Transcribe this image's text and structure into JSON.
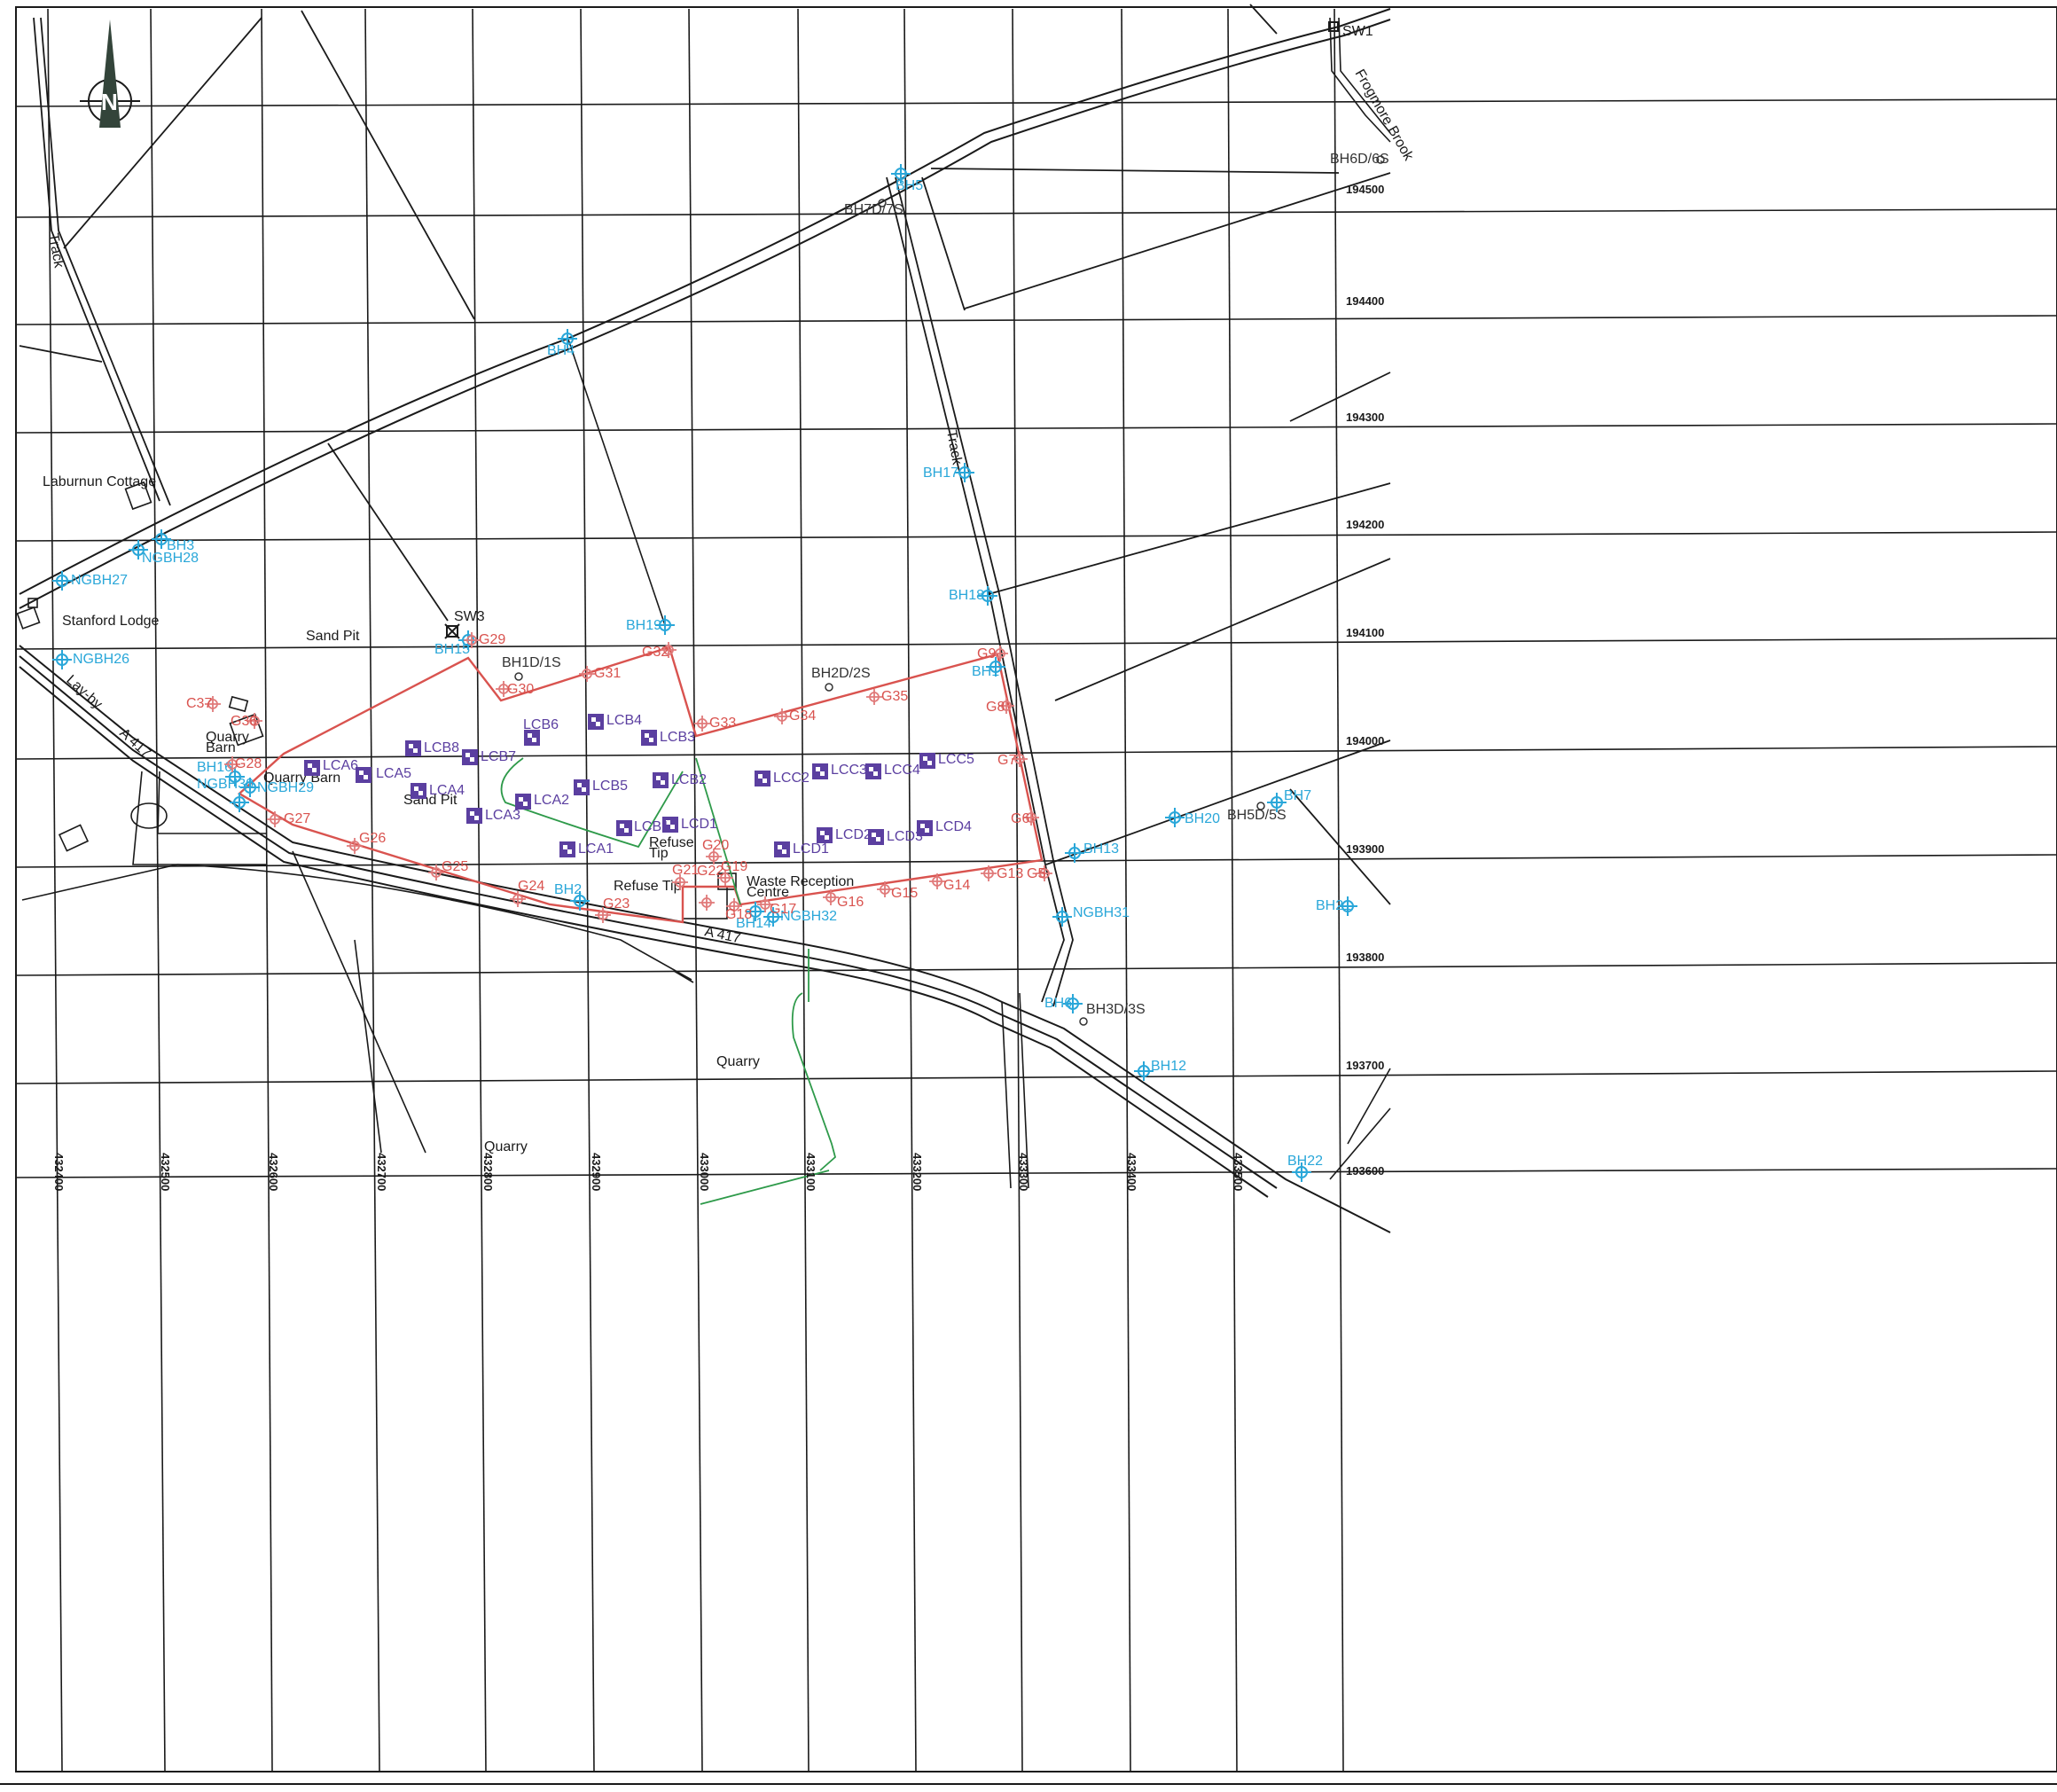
{
  "map": {
    "place_labels": {
      "laburnun_cottage": "Laburnun Cottage",
      "stanford_lodge": "Stanford Lodge",
      "sand_pit_1": "Sand Pit",
      "sand_pit_2": "Sand Pit",
      "quarry_barn_1": "Quarry",
      "quarry_barn_1b": "Barn",
      "quarry_barn_2": "Quarry Barn",
      "refuse_tip_1a": "Refuse",
      "refuse_tip_1b": "Tip",
      "refuse_tip_2": "Refuse Tip",
      "waste_reception_a": "Waste Reception",
      "waste_reception_b": "Centre",
      "quarry_1": "Quarry",
      "quarry_2": "Quarry",
      "track_1": "Track",
      "track_2": "Track",
      "lay_by": "Lay-by",
      "a417_1": "A 417",
      "a417_2": "A 417",
      "frogmore_brook": "Frogmore Brook",
      "sw1": "SW1",
      "sw3": "SW3"
    },
    "easting_ticks": [
      "432400",
      "432500",
      "432600",
      "432700",
      "432800",
      "432900",
      "433000",
      "433100",
      "433200",
      "433300",
      "433400",
      "433500"
    ],
    "northing_ticks": [
      "194500",
      "194400",
      "194300",
      "194200",
      "194100",
      "194000",
      "193900",
      "193800",
      "193700",
      "193600"
    ],
    "boreholes_blue": {
      "bh1": "BH1",
      "bh2": "BH2",
      "bh3": "BH3",
      "bh4": "BH4",
      "bh5": "BH5",
      "bh6": "BH6",
      "bh7": "BH7",
      "bh12": "BH12",
      "bh13": "BH13",
      "bh14": "BH14",
      "bh15": "BH15",
      "bh16": "BH16",
      "bh17": "BH17",
      "bh18": "BH18",
      "bh19": "BH19",
      "bh20": "BH20",
      "bh21": "BH21",
      "bh22": "BH22",
      "ngbh26": "NGBH26",
      "ngbh27": "NGBH27",
      "ngbh28": "NGBH28",
      "ngbh29": "NGBH29",
      "ngbh30": "NGBH30",
      "ngbh31": "NGBH31",
      "ngbh32": "NGBH32"
    },
    "boreholes_dark": {
      "bh1d": "BH1D/1S",
      "bh2d": "BH2D/2S",
      "bh3d": "BH3D/3S",
      "bh5d": "BH5D/5S",
      "bh6d": "BH6D/6S",
      "bh7d": "BH7D/7S"
    },
    "gas_points": {
      "g5": "G5",
      "g6": "G6",
      "g7": "G7",
      "g8": "G8",
      "g9": "G9",
      "g13": "G13",
      "g14": "G14",
      "g15": "G15",
      "g16": "G16",
      "g17": "G17",
      "g18": "G18",
      "g19": "G19",
      "g20": "G20",
      "g21": "G21",
      "g22": "G22",
      "g23": "G23",
      "g24": "G24",
      "g25": "G25",
      "g26": "G26",
      "g27": "G27",
      "g28": "G28",
      "g29": "G29",
      "g30": "G30",
      "g31": "G31",
      "g32": "G32",
      "g33": "G33",
      "g34": "G34",
      "g35": "G35",
      "g36": "G36",
      "c37": "C37"
    },
    "cells": {
      "lca1": "LCA1",
      "lca2": "LCA2",
      "lca3": "LCA3",
      "lca4": "LCA4",
      "lca5": "LCA5",
      "lca6": "LCA6",
      "lcb1": "LCB1",
      "lcb2": "LCB2",
      "lcb3": "LCB3",
      "lcb4": "LCB4",
      "lcb5": "LCB5",
      "lcb6": "LCB6",
      "lcb7": "LCB7",
      "lcb8": "LCB8",
      "lcc2": "LCC2",
      "lcc3": "LCC3",
      "lcc4": "LCC4",
      "lcc5": "LCC5",
      "lcd1": "LCD1",
      "lcd2": "LCD2",
      "lcd3": "LCD3",
      "lcd4": "LCD4",
      "lcd0": "LCD1"
    },
    "compass": "N"
  },
  "colors": {
    "grid": "#1a1a1a",
    "boundary": "#d9534f",
    "borehole": "#2aa7d9",
    "gas": "#e07a7a",
    "cell": "#5b3fa0",
    "green_line": "#2e9a4a",
    "teal_line": "#2a8a6a"
  }
}
